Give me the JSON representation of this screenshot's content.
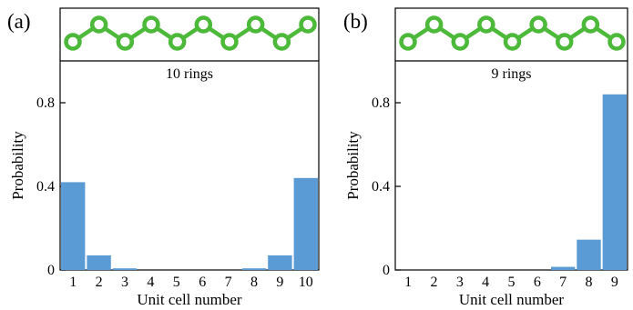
{
  "colors": {
    "bar": "#5b9bd5",
    "ring": "#4db93a",
    "axis": "#000000"
  },
  "chart_data": [
    {
      "type": "bar",
      "panel_label": "(a)",
      "title": "10 rings",
      "xlabel": "Unit cell number",
      "ylabel": "Probability",
      "ylim": [
        0,
        1.0
      ],
      "yticks": [
        "0",
        "0.4",
        "0.8"
      ],
      "ytick_values": [
        0,
        0.4,
        0.8
      ],
      "categories": [
        "1",
        "2",
        "3",
        "4",
        "5",
        "6",
        "7",
        "8",
        "9",
        "10"
      ],
      "values": [
        0.42,
        0.07,
        0.008,
        0.0,
        0.0,
        0.0,
        0.0,
        0.008,
        0.07,
        0.44
      ],
      "ring_count": 10,
      "grid": false
    },
    {
      "type": "bar",
      "panel_label": "(b)",
      "title": "9 rings",
      "xlabel": "Unit cell number",
      "ylabel": "Probability",
      "ylim": [
        0,
        1.0
      ],
      "yticks": [
        "0",
        "0.4",
        "0.8"
      ],
      "ytick_values": [
        0,
        0.4,
        0.8
      ],
      "categories": [
        "1",
        "2",
        "3",
        "4",
        "5",
        "6",
        "7",
        "8",
        "9"
      ],
      "values": [
        0.0,
        0.0,
        0.0,
        0.0,
        0.0,
        0.0,
        0.015,
        0.145,
        0.84
      ],
      "ring_count": 9,
      "grid": false
    }
  ]
}
